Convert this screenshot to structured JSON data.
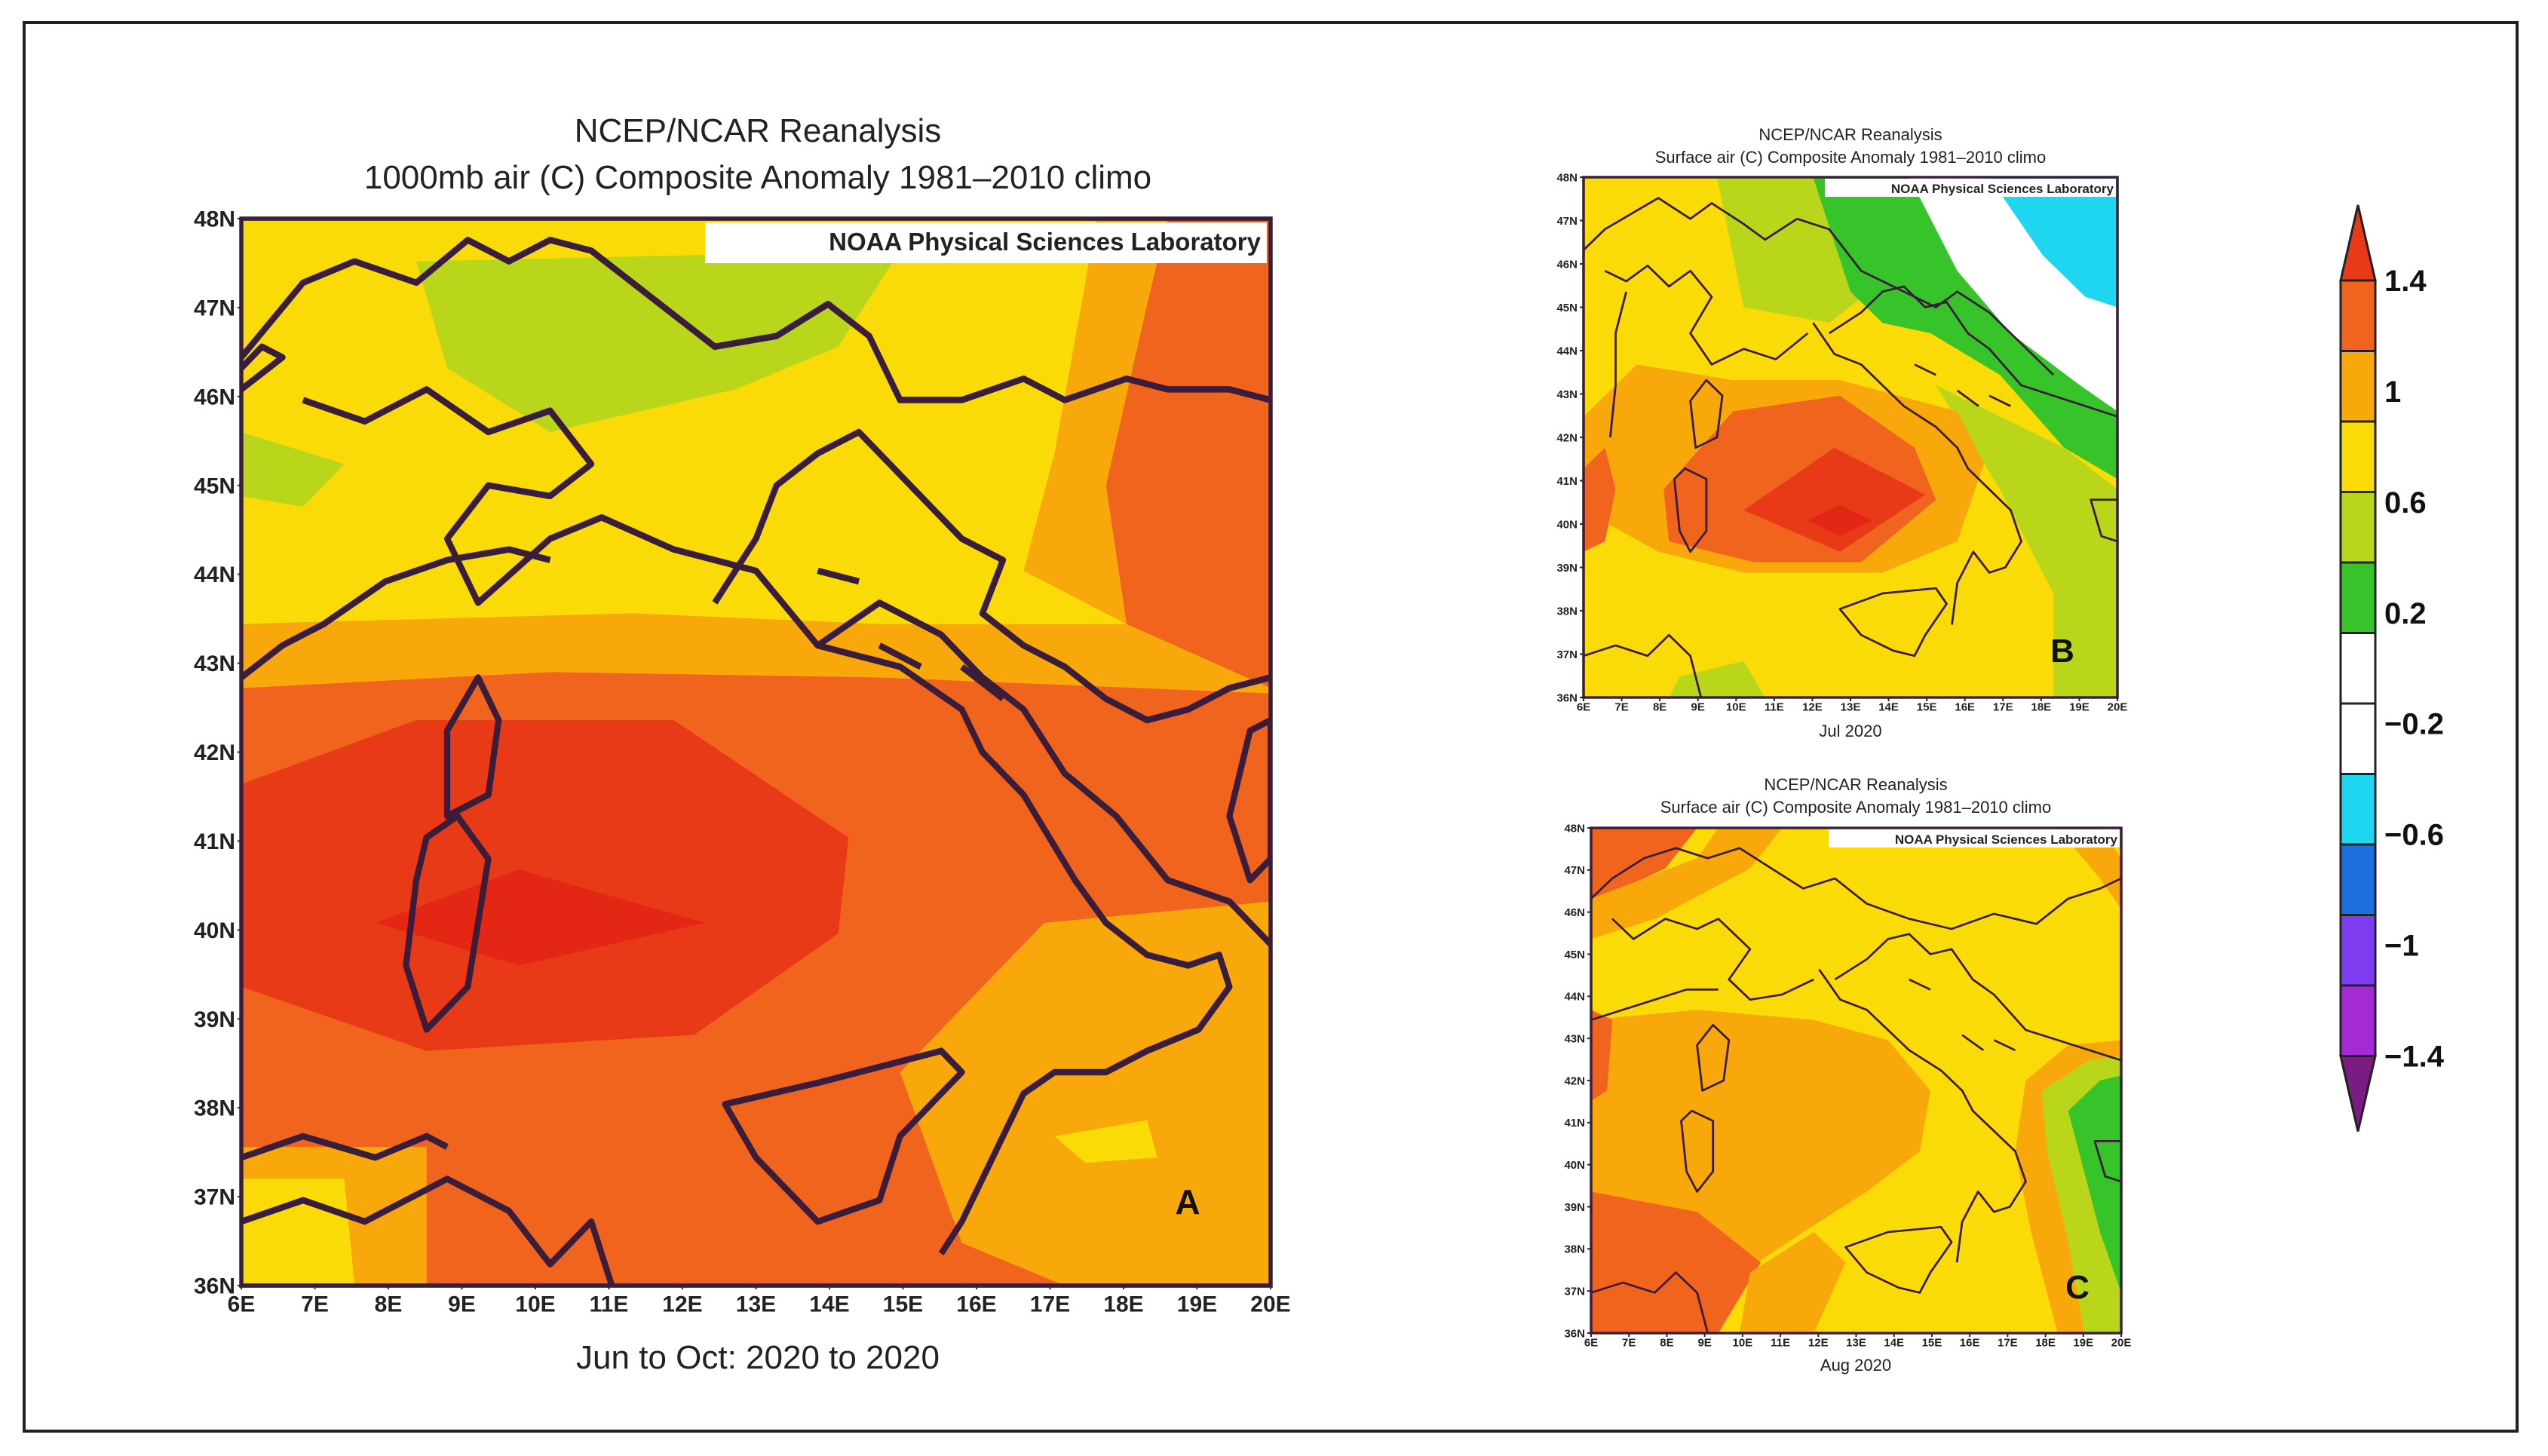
{
  "colors": {
    "c_lt_m1_4": "#7b1c82",
    "c_m1_4": "#a52ad6",
    "c_m1": "#7d3cf0",
    "c_m0_6": "#1d6fe0",
    "c_m0_2": "#1fd6f0",
    "c_0": "#ffffff",
    "c_0_2": "#36c42a",
    "c_0_6": "#b9d61a",
    "c_1": "#fadb07",
    "c_1_2": "#f8a80a",
    "c_1_4": "#f0641e",
    "c_gt_1_4": "#e83a17",
    "peak": "#e42614",
    "coast": "#3a1d3a"
  },
  "panelA": {
    "title_line1": "NCEP/NCAR Reanalysis",
    "title_line2": "1000mb air (C) Composite Anomaly 1981–2010 climo",
    "credit": "NOAA Physical Sciences Laboratory",
    "period": "Jun to Oct: 2020 to 2020",
    "panel_label": "A"
  },
  "panelB": {
    "title_line1": "NCEP/NCAR Reanalysis",
    "title_line2": "Surface air (C) Composite Anomaly 1981–2010 climo",
    "credit": "NOAA Physical Sciences Laboratory",
    "period": "Jul 2020",
    "panel_label": "B"
  },
  "panelC": {
    "title_line1": "NCEP/NCAR Reanalysis",
    "title_line2": "Surface air (C) Composite Anomaly 1981–2010 climo",
    "credit": "NOAA Physical Sciences Laboratory",
    "period": "Aug 2020",
    "panel_label": "C"
  },
  "lat_labels": [
    "48N",
    "47N",
    "46N",
    "45N",
    "44N",
    "43N",
    "42N",
    "41N",
    "40N",
    "39N",
    "38N",
    "37N",
    "36N"
  ],
  "lon_labels": [
    "6E",
    "7E",
    "8E",
    "9E",
    "10E",
    "11E",
    "12E",
    "13E",
    "14E",
    "15E",
    "16E",
    "17E",
    "18E",
    "19E",
    "20E"
  ],
  "colorbar": {
    "ticks": [
      "1.4",
      "1",
      "0.6",
      "0.2",
      "−0.2",
      "−0.6",
      "−1",
      "−1.4"
    ]
  }
}
